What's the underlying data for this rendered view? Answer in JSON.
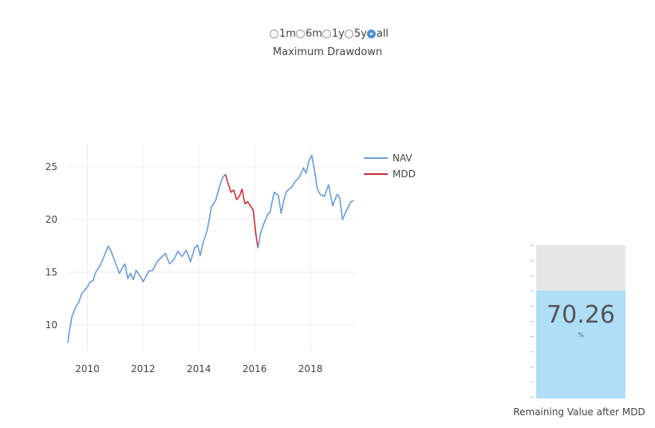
{
  "range_selector": {
    "options": [
      {
        "label": "1m",
        "checked": false
      },
      {
        "label": "6m",
        "checked": false
      },
      {
        "label": "1y",
        "checked": false
      },
      {
        "label": "5y",
        "checked": false
      },
      {
        "label": "all",
        "checked": true
      }
    ]
  },
  "chart_data": [
    {
      "type": "line",
      "title": "Maximum Drawdown",
      "xlabel": "",
      "ylabel": "",
      "xlim": [
        2009.3,
        2019.6
      ],
      "ylim": [
        7.5,
        27.2
      ],
      "x_ticks": [
        2010,
        2012,
        2014,
        2016,
        2018
      ],
      "y_ticks": [
        10,
        15,
        20,
        25
      ],
      "grid": true,
      "legend_position": "right",
      "series": [
        {
          "name": "NAV",
          "color": "#6b9bd8",
          "x": [
            2009.3,
            2009.35,
            2009.45,
            2009.6,
            2009.7,
            2009.8,
            2009.9,
            2010.0,
            2010.1,
            2010.2,
            2010.3,
            2010.45,
            2010.6,
            2010.75,
            2010.85,
            2010.95,
            2011.05,
            2011.15,
            2011.25,
            2011.35,
            2011.45,
            2011.55,
            2011.65,
            2011.75,
            2011.9,
            2012.0,
            2012.1,
            2012.2,
            2012.35,
            2012.5,
            2012.65,
            2012.8,
            2012.95,
            2013.1,
            2013.25,
            2013.4,
            2013.55,
            2013.7,
            2013.85,
            2013.95,
            2014.05,
            2014.15,
            2014.3,
            2014.45,
            2014.6,
            2014.75,
            2014.85,
            2014.95
          ],
          "y": [
            8.3,
            9.3,
            10.8,
            11.8,
            12.2,
            13.0,
            13.3,
            13.6,
            14.1,
            14.2,
            15.0,
            15.6,
            16.5,
            17.5,
            17.0,
            16.3,
            15.6,
            14.9,
            15.4,
            15.8,
            14.4,
            14.9,
            14.3,
            15.2,
            14.6,
            14.1,
            14.6,
            15.1,
            15.2,
            16.0,
            16.4,
            16.8,
            15.8,
            16.2,
            17.0,
            16.5,
            17.1,
            16.0,
            17.3,
            17.6,
            16.6,
            17.8,
            19.0,
            21.2,
            21.8,
            23.2,
            24.0,
            24.3
          ]
        },
        {
          "name": "MDD",
          "color": "#c8303b",
          "x": [
            2014.95,
            2015.05,
            2015.15,
            2015.25,
            2015.35,
            2015.45,
            2015.55,
            2015.65,
            2015.75,
            2015.85,
            2015.95,
            2016.05,
            2016.12
          ],
          "y": [
            24.3,
            23.4,
            22.6,
            22.8,
            21.9,
            22.2,
            22.9,
            21.5,
            21.7,
            21.3,
            20.9,
            18.5,
            17.3
          ]
        },
        {
          "name": "NAV",
          "color": "#6b9bd8",
          "x": [
            2016.12,
            2016.2,
            2016.3,
            2016.45,
            2016.55,
            2016.7,
            2016.85,
            2016.95,
            2017.05,
            2017.15,
            2017.3,
            2017.45,
            2017.6,
            2017.75,
            2017.85,
            2017.95,
            2018.05,
            2018.15,
            2018.25,
            2018.35,
            2018.5,
            2018.65,
            2018.8,
            2018.95,
            2019.05,
            2019.15,
            2019.3,
            2019.45,
            2019.55
          ],
          "y": [
            17.3,
            18.6,
            19.4,
            20.4,
            20.7,
            22.6,
            22.3,
            20.6,
            21.9,
            22.7,
            23.0,
            23.6,
            24.0,
            24.9,
            24.4,
            25.6,
            26.1,
            24.6,
            22.9,
            22.4,
            22.2,
            23.3,
            21.3,
            22.4,
            22.1,
            20.0,
            20.9,
            21.7,
            21.8
          ]
        }
      ]
    },
    {
      "type": "bar",
      "title": "Remaining Value after MDD",
      "value": 70.26,
      "unit": "%",
      "ylim": [
        0,
        100
      ]
    }
  ],
  "colors": {
    "gauge_fill": "#aedff7",
    "gauge_bg": "#e6e6e6",
    "grid": "#eeeeee"
  }
}
